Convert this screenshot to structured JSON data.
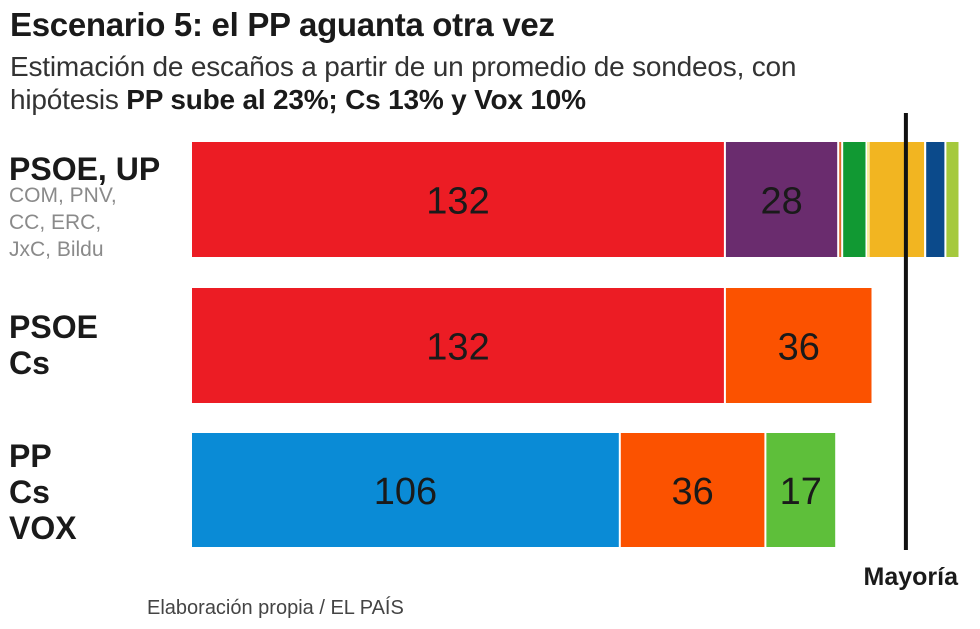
{
  "title": "Escenario 5: el PP aguanta otra vez",
  "subtitle": {
    "line1": "Estimación de escaños a partir de un promedio de sondeos, con",
    "line2_prefix": "hipótesis ",
    "line2_bold": "PP sube al 23%; Cs 13% y Vox 10%"
  },
  "source": "Elaboración propia / EL PAÍS",
  "chart_data": {
    "type": "bar",
    "orientation": "horizontal",
    "stacked": true,
    "majority_label": "Mayoría",
    "majority_value": 176,
    "colors": {
      "PSOE": "#ec1c24",
      "UP": "#6a2c6e",
      "COM": "#e06c2a",
      "PNV": "#119933",
      "CC": "#f3e03b",
      "ERC": "#f2b521",
      "JxC": "#0b4a8b",
      "Bildu": "#a5c93d",
      "PP": "#0a8bd6",
      "Cs": "#fb5200",
      "VOX": "#5ebf3a",
      "majority_line": "#111111"
    },
    "rows": [
      {
        "label_main": [
          "PSOE, UP"
        ],
        "label_sub": [
          "COM, PNV,",
          "CC, ERC,",
          "JxC, Bildu"
        ],
        "segments": [
          {
            "party": "PSOE",
            "value": 132,
            "label": "132"
          },
          {
            "party": "UP",
            "value": 28,
            "label": "28"
          },
          {
            "party": "COM",
            "value": 1
          },
          {
            "party": "PNV",
            "value": 6
          },
          {
            "party": "CC",
            "value": 0.5
          },
          {
            "party": "ERC",
            "value": 14
          },
          {
            "party": "JxC",
            "value": 5
          },
          {
            "party": "Bildu",
            "value": 3
          }
        ]
      },
      {
        "label_main": [
          "PSOE",
          "Cs"
        ],
        "label_sub": [],
        "segments": [
          {
            "party": "PSOE",
            "value": 132,
            "label": "132"
          },
          {
            "party": "Cs",
            "value": 36,
            "label": "36"
          }
        ]
      },
      {
        "label_main": [
          "PP",
          "Cs",
          "VOX"
        ],
        "label_sub": [],
        "segments": [
          {
            "party": "PP",
            "value": 106,
            "label": "106"
          },
          {
            "party": "Cs",
            "value": 36,
            "label": "36"
          },
          {
            "party": "VOX",
            "value": 17,
            "label": "17"
          }
        ]
      }
    ]
  }
}
